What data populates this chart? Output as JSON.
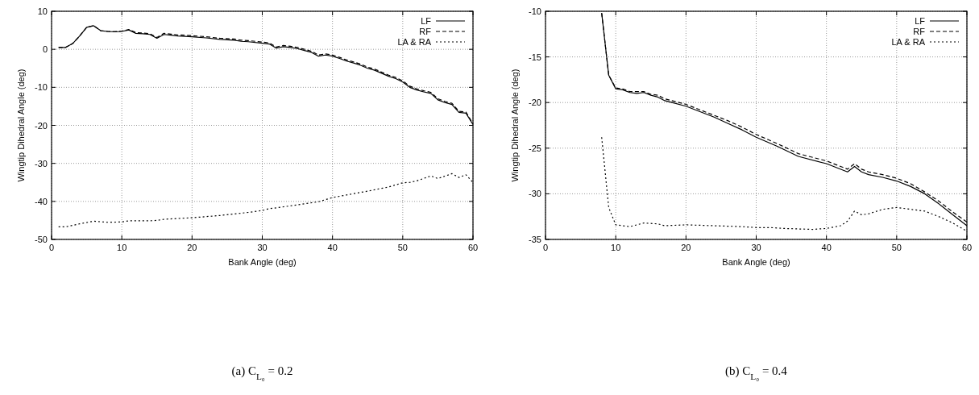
{
  "chart_data": [
    {
      "type": "line",
      "xlabel": "Bank Angle (deg)",
      "ylabel": "Wingtip Dihedral Angle (deg)",
      "xlim": [
        0,
        60
      ],
      "ylim": [
        -50,
        10
      ],
      "xticks": [
        0,
        10,
        20,
        30,
        40,
        50,
        60
      ],
      "yticks": [
        -50,
        -40,
        -30,
        -20,
        -10,
        0,
        10
      ],
      "grid": true,
      "legend": "top right",
      "annotations": [
        "(a) C$_{L₀}$ = 0.2"
      ],
      "series": [
        {
          "name": "LF",
          "color": "#000000",
          "line_style": "solid",
          "x": [
            1,
            2,
            3,
            4,
            5,
            6,
            7,
            8,
            9,
            10,
            11,
            12,
            13,
            14,
            15,
            16,
            17,
            18,
            19,
            20,
            22,
            24,
            26,
            27,
            28,
            30,
            31,
            32,
            33,
            34,
            35,
            36,
            37,
            38,
            39,
            40,
            41,
            42,
            43,
            44,
            45,
            46,
            47,
            48,
            49,
            50,
            51,
            52,
            53,
            54,
            55,
            56,
            57,
            58,
            59,
            60
          ],
          "values": [
            0.5,
            0.5,
            1.5,
            3.5,
            5.8,
            6.2,
            4.9,
            4.7,
            4.6,
            4.7,
            5.1,
            4.2,
            4.1,
            3.9,
            2.9,
            3.9,
            3.7,
            3.5,
            3.4,
            3.3,
            3.0,
            2.6,
            2.4,
            2.1,
            2.0,
            1.6,
            1.4,
            0.3,
            0.7,
            0.5,
            0.2,
            -0.3,
            -0.8,
            -1.8,
            -1.5,
            -1.8,
            -2.4,
            -3.1,
            -3.6,
            -4.2,
            -5.0,
            -5.5,
            -6.3,
            -7.1,
            -7.7,
            -8.6,
            -10.0,
            -10.7,
            -11.2,
            -11.6,
            -13.3,
            -14.0,
            -14.5,
            -16.6,
            -16.8,
            -19.8
          ]
        },
        {
          "name": "RF",
          "color": "#000000",
          "line_style": "dashed",
          "x": [
            1,
            2,
            3,
            4,
            5,
            6,
            7,
            8,
            9,
            10,
            11,
            12,
            13,
            14,
            15,
            16,
            17,
            18,
            19,
            20,
            22,
            24,
            26,
            27,
            28,
            30,
            31,
            32,
            33,
            34,
            35,
            36,
            37,
            38,
            39,
            40,
            41,
            42,
            43,
            44,
            45,
            46,
            47,
            48,
            49,
            50,
            51,
            52,
            53,
            54,
            55,
            56,
            57,
            58,
            59,
            60
          ],
          "values": [
            0.5,
            0.5,
            1.5,
            3.5,
            5.8,
            6.2,
            4.9,
            4.7,
            4.6,
            4.8,
            5.2,
            4.4,
            4.3,
            4.1,
            3.1,
            4.2,
            4.0,
            3.8,
            3.7,
            3.6,
            3.3,
            2.9,
            2.7,
            2.4,
            2.3,
            1.9,
            1.7,
            0.6,
            1.0,
            0.8,
            0.5,
            0.0,
            -0.5,
            -1.5,
            -1.2,
            -1.5,
            -2.1,
            -2.8,
            -3.3,
            -3.9,
            -4.7,
            -5.2,
            -6.0,
            -6.8,
            -7.4,
            -8.3,
            -9.7,
            -10.4,
            -10.9,
            -11.3,
            -13.0,
            -13.7,
            -14.2,
            -16.3,
            -16.5,
            -19.6
          ]
        },
        {
          "name": "LA & RA",
          "color": "#000000",
          "line_style": "dotted",
          "x": [
            1,
            2,
            4,
            6,
            8,
            10,
            11,
            14,
            15,
            16,
            20,
            24,
            28,
            30,
            31,
            32,
            35,
            38,
            40,
            42,
            45,
            48,
            50,
            51,
            52,
            54,
            55,
            57,
            58,
            59,
            60
          ],
          "values": [
            -46.7,
            -46.7,
            -45.9,
            -45.2,
            -45.5,
            -45.4,
            -45.1,
            -45.1,
            -45.0,
            -44.7,
            -44.3,
            -43.7,
            -42.9,
            -42.4,
            -41.9,
            -41.7,
            -40.9,
            -40.1,
            -39.0,
            -38.3,
            -37.3,
            -36.2,
            -35.1,
            -35.0,
            -34.6,
            -33.3,
            -34.0,
            -32.7,
            -33.7,
            -33.0,
            -35.0
          ]
        }
      ]
    },
    {
      "type": "line",
      "xlabel": "Bank Angle (deg)",
      "ylabel": "Wingtip Dihedral Angle (deg)",
      "xlim": [
        0,
        60
      ],
      "ylim": [
        -35,
        -10
      ],
      "xticks": [
        0,
        10,
        20,
        30,
        40,
        50,
        60
      ],
      "yticks": [
        -35,
        -30,
        -25,
        -20,
        -15,
        -10
      ],
      "grid": true,
      "legend": "top right",
      "annotations": [
        "(b) C$_{L₀}$ = 0.4"
      ],
      "series": [
        {
          "name": "LF",
          "color": "#000000",
          "line_style": "solid",
          "x": [
            8,
            9,
            10,
            11,
            12,
            13,
            14,
            15,
            16,
            17,
            18,
            20,
            22,
            24,
            26,
            28,
            30,
            33,
            36,
            40,
            43,
            44,
            45,
            46,
            48,
            50,
            52,
            54,
            56,
            58,
            60
          ],
          "values": [
            -10.2,
            -17.0,
            -18.5,
            -18.6,
            -18.9,
            -19.0,
            -18.9,
            -19.2,
            -19.4,
            -19.8,
            -20.0,
            -20.4,
            -21.0,
            -21.6,
            -22.3,
            -23.0,
            -23.8,
            -24.8,
            -25.9,
            -26.7,
            -27.6,
            -27.0,
            -27.6,
            -27.9,
            -28.2,
            -28.6,
            -29.2,
            -30.0,
            -31.1,
            -32.3,
            -33.5
          ]
        },
        {
          "name": "RF",
          "color": "#000000",
          "line_style": "dashed",
          "x": [
            8,
            9,
            10,
            11,
            12,
            13,
            14,
            15,
            16,
            17,
            18,
            20,
            22,
            24,
            26,
            28,
            30,
            33,
            36,
            40,
            43,
            44,
            45,
            46,
            48,
            50,
            52,
            54,
            56,
            58,
            60
          ],
          "values": [
            -10.2,
            -17.0,
            -18.4,
            -18.5,
            -18.8,
            -18.8,
            -18.8,
            -19.1,
            -19.2,
            -19.6,
            -19.8,
            -20.2,
            -20.8,
            -21.4,
            -22.0,
            -22.7,
            -23.5,
            -24.5,
            -25.6,
            -26.4,
            -27.3,
            -26.7,
            -27.3,
            -27.6,
            -27.9,
            -28.3,
            -28.9,
            -29.8,
            -30.8,
            -32.0,
            -33.1
          ]
        },
        {
          "name": "LA & RA",
          "color": "#000000",
          "line_style": "dotted",
          "x": [
            8,
            9,
            10,
            12,
            14,
            16,
            17,
            20,
            24,
            28,
            30,
            32,
            34,
            38,
            40,
            42,
            43,
            44,
            45,
            46,
            48,
            50,
            54,
            56,
            58,
            60
          ],
          "values": [
            -23.8,
            -31.5,
            -33.4,
            -33.6,
            -33.2,
            -33.3,
            -33.5,
            -33.4,
            -33.5,
            -33.6,
            -33.7,
            -33.7,
            -33.8,
            -33.9,
            -33.8,
            -33.5,
            -33.0,
            -31.9,
            -32.3,
            -32.2,
            -31.7,
            -31.5,
            -31.9,
            -32.5,
            -33.2,
            -34.1
          ]
        }
      ]
    }
  ]
}
